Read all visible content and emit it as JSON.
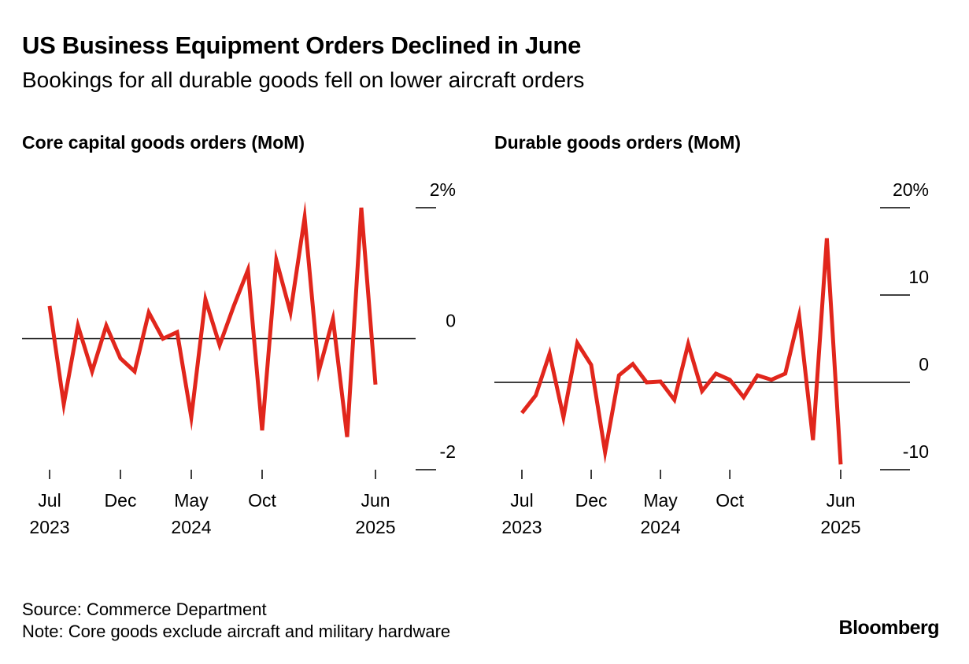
{
  "title": "US Business Equipment Orders Declined in June",
  "subtitle": "Bookings for all durable goods fell on lower aircraft orders",
  "footer": {
    "source": "Source: Commerce Department",
    "note": "Note: Core goods exclude aircraft and military hardware"
  },
  "logo": "Bloomberg",
  "colors": {
    "line": "#e1261c",
    "axis": "#000000",
    "background": "#ffffff"
  },
  "chart_data": [
    {
      "type": "line",
      "title": "Core capital goods orders (MoM)",
      "x": [
        "2023-07",
        "2023-08",
        "2023-09",
        "2023-10",
        "2023-11",
        "2023-12",
        "2024-01",
        "2024-02",
        "2024-03",
        "2024-04",
        "2024-05",
        "2024-06",
        "2024-07",
        "2024-08",
        "2024-09",
        "2024-10",
        "2024-11",
        "2024-12",
        "2025-01",
        "2025-02",
        "2025-03",
        "2025-04",
        "2025-05",
        "2025-06"
      ],
      "series": [
        {
          "values": [
            0.5,
            -1.0,
            0.2,
            -0.5,
            0.2,
            -0.3,
            -0.5,
            0.4,
            0.0,
            0.1,
            -1.2,
            0.6,
            -0.1,
            0.5,
            1.05,
            -1.4,
            1.2,
            0.4,
            1.85,
            -0.5,
            0.3,
            -1.5,
            2.0,
            -0.7
          ]
        }
      ],
      "ylim": [
        -2,
        2
      ],
      "yticks": [
        -2,
        0,
        2
      ],
      "ytick_labels": [
        "-2",
        "0",
        "2%"
      ],
      "xticks": [
        {
          "month": "Jul",
          "year": "2023"
        },
        {
          "month": "Dec",
          "year": ""
        },
        {
          "month": "May",
          "year": "2024"
        },
        {
          "month": "Oct",
          "year": ""
        },
        {
          "month": "Jun",
          "year": "2025"
        }
      ],
      "zero_line": true,
      "grid": false
    },
    {
      "type": "line",
      "title": "Durable goods orders (MoM)",
      "x": [
        "2023-07",
        "2023-08",
        "2023-09",
        "2023-10",
        "2023-11",
        "2023-12",
        "2024-01",
        "2024-02",
        "2024-03",
        "2024-04",
        "2024-05",
        "2024-06",
        "2024-07",
        "2024-08",
        "2024-09",
        "2024-10",
        "2024-11",
        "2024-12",
        "2025-01",
        "2025-02",
        "2025-03",
        "2025-04",
        "2025-05",
        "2025-06"
      ],
      "series": [
        {
          "values": [
            -3.5,
            -1.5,
            3.3,
            -4.0,
            4.5,
            2.0,
            -8.0,
            0.8,
            2.1,
            0.0,
            0.1,
            -2.0,
            4.4,
            -1.0,
            1.0,
            0.3,
            -1.7,
            0.8,
            0.3,
            1.0,
            7.6,
            -6.6,
            16.5,
            -9.4
          ]
        }
      ],
      "ylim": [
        -10,
        20
      ],
      "yticks": [
        -10,
        0,
        10,
        20
      ],
      "ytick_labels": [
        "-10",
        "0",
        "10",
        "20%"
      ],
      "xticks": [
        {
          "month": "Jul",
          "year": "2023"
        },
        {
          "month": "Dec",
          "year": ""
        },
        {
          "month": "May",
          "year": "2024"
        },
        {
          "month": "Oct",
          "year": ""
        },
        {
          "month": "Jun",
          "year": "2025"
        }
      ],
      "zero_line": true,
      "grid": false
    }
  ]
}
